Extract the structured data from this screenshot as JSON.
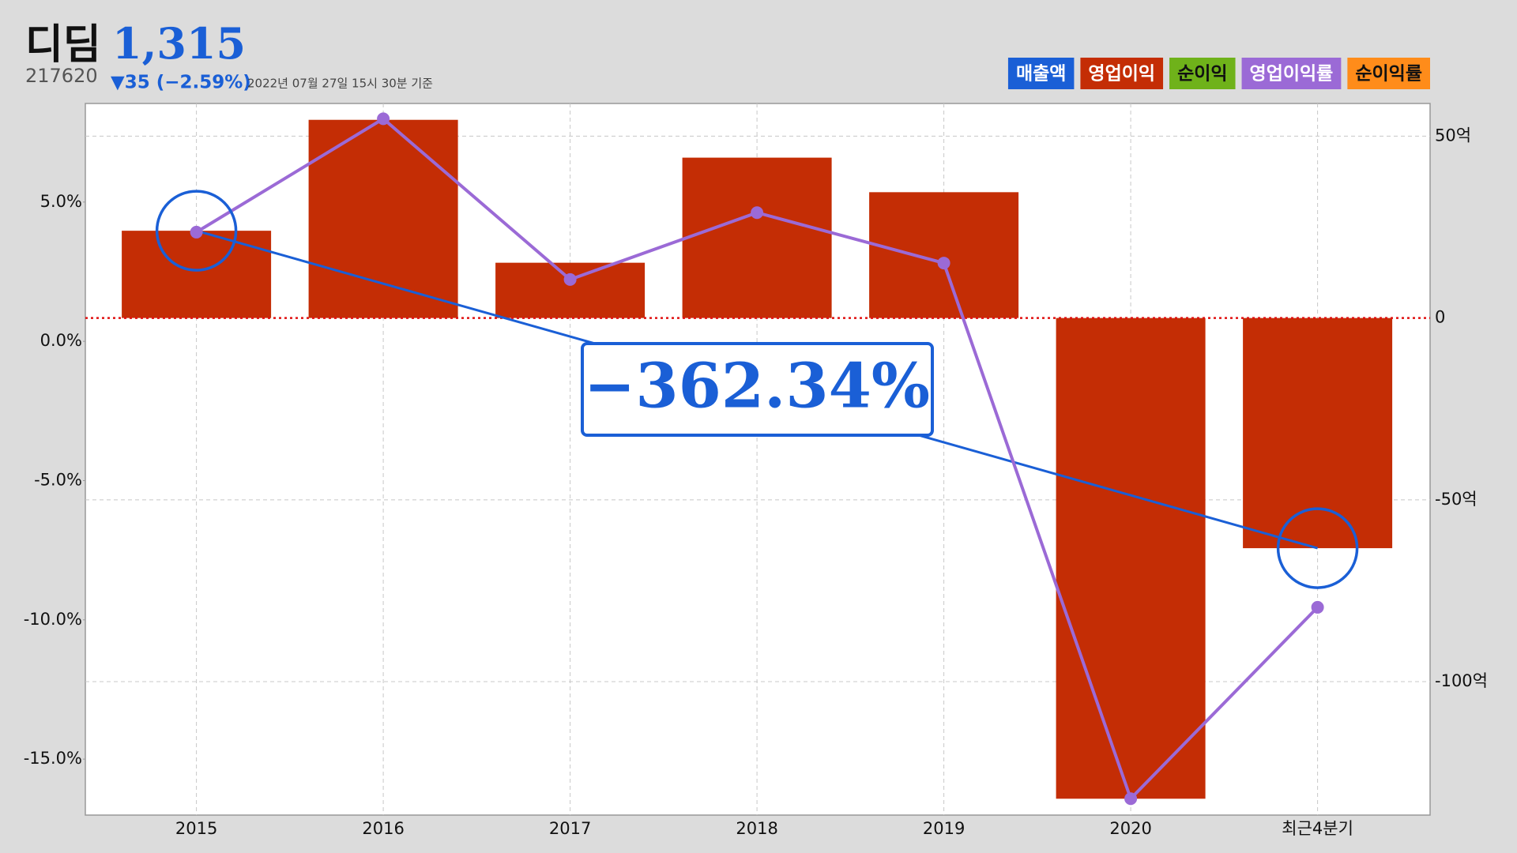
{
  "header": {
    "name": "디딤",
    "price": "1,315",
    "code": "217620",
    "change": "▼35 (−2.59%)",
    "timestamp": "2022년 07월 27일 15시 30분 기준"
  },
  "chart_data": {
    "type": "bar-line",
    "categories": [
      "2015",
      "2016",
      "2017",
      "2018",
      "2019",
      "2020",
      "최근4분기"
    ],
    "series": [
      {
        "name": "매출액",
        "color": "#1a5fd6",
        "label_color": "#ffffff"
      },
      {
        "name": "영업이익",
        "color": "#c42d05",
        "label_color": "#ffffff",
        "type": "bar",
        "axis": "y2",
        "values": [
          24,
          54.5,
          15.2,
          44.1,
          34.6,
          -132.2,
          -63.3
        ]
      },
      {
        "name": "순이익",
        "color": "#6fb21a",
        "label_color": "#111111"
      },
      {
        "name": "영업이익률",
        "color": "#9b6ad6",
        "label_color": "#ffffff",
        "type": "line",
        "values": [
          3.92,
          7.99,
          2.22,
          4.62,
          2.81,
          -16.42,
          -9.55
        ]
      },
      {
        "name": "순이익률",
        "color": "#ff8c1a",
        "label_color": "#111111"
      }
    ],
    "ylim": [
      -17.01,
      8.54
    ],
    "yticks": [
      {
        "value": 5,
        "label": "5.0%"
      },
      {
        "value": 0,
        "label": "0.0%"
      },
      {
        "value": -5,
        "label": "-5.0%"
      },
      {
        "value": -10,
        "label": "-10.0%"
      },
      {
        "value": -15,
        "label": "-15.0%"
      }
    ],
    "y2lim": [
      -136.7,
      59.0
    ],
    "y2ticks": [
      {
        "value": 50,
        "label": "50억"
      },
      0,
      {
        "value": -50,
        "label": "-50억"
      },
      {
        "value": -100,
        "label": "-100억"
      }
    ],
    "grid": true,
    "annotation": {
      "text": "−362.34%",
      "color": "#1a5fd6"
    }
  }
}
